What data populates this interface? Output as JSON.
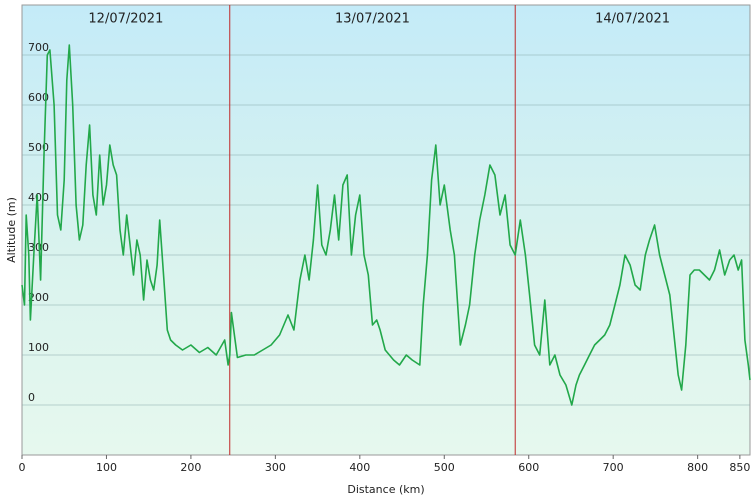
{
  "chart_data": {
    "type": "line",
    "xlabel": "Distance  (km)",
    "ylabel": "Altitude (m)",
    "day_labels": [
      "12/07/2021",
      "13/07/2021",
      "14/07/2021"
    ],
    "day_breaks": [
      246,
      584
    ],
    "break_color": "#c02828",
    "series": [
      {
        "name": "Altitude",
        "color": "#22a84a",
        "x": [
          0,
          3,
          5,
          8,
          10,
          14,
          18,
          22,
          26,
          30,
          33,
          38,
          42,
          46,
          50,
          53,
          56,
          60,
          64,
          68,
          72,
          76,
          80,
          84,
          88,
          92,
          96,
          100,
          104,
          108,
          112,
          116,
          120,
          124,
          128,
          132,
          136,
          140,
          144,
          148,
          152,
          156,
          160,
          163,
          168,
          172,
          176,
          182,
          190,
          200,
          210,
          220,
          230,
          240,
          244,
          246,
          248,
          255,
          265,
          275,
          285,
          295,
          305,
          315,
          322,
          329,
          335,
          340,
          345,
          350,
          355,
          360,
          365,
          370,
          375,
          380,
          385,
          390,
          395,
          400,
          405,
          410,
          415,
          420,
          424,
          430,
          435,
          440,
          447,
          455,
          462,
          471,
          475,
          480,
          485,
          490,
          495,
          500,
          507,
          512,
          519,
          525,
          530,
          536,
          542,
          548,
          554,
          560,
          566,
          572,
          578,
          584,
          590,
          596,
          601,
          607,
          613,
          619,
          625,
          631,
          637,
          644,
          651,
          656,
          660,
          666,
          672,
          678,
          684,
          690,
          696,
          702,
          708,
          714,
          720,
          726,
          732,
          738,
          743,
          749,
          755,
          761,
          767,
          772,
          777,
          781,
          786,
          791,
          796,
          802,
          808,
          814,
          820,
          826,
          832,
          838,
          843,
          848,
          852,
          856,
          860,
          862
        ],
        "values": [
          240,
          200,
          380,
          300,
          170,
          300,
          420,
          250,
          500,
          700,
          710,
          600,
          380,
          350,
          450,
          650,
          720,
          600,
          400,
          330,
          360,
          480,
          560,
          420,
          380,
          500,
          400,
          440,
          520,
          480,
          460,
          350,
          300,
          380,
          320,
          260,
          330,
          300,
          210,
          290,
          250,
          230,
          280,
          370,
          250,
          150,
          130,
          120,
          110,
          120,
          105,
          115,
          100,
          130,
          80,
          100,
          185,
          95,
          100,
          100,
          110,
          120,
          140,
          180,
          150,
          250,
          300,
          250,
          330,
          440,
          320,
          300,
          350,
          420,
          330,
          440,
          460,
          300,
          380,
          420,
          300,
          260,
          160,
          170,
          150,
          110,
          100,
          90,
          80,
          100,
          90,
          80,
          200,
          300,
          450,
          520,
          400,
          440,
          350,
          300,
          120,
          160,
          200,
          300,
          370,
          420,
          480,
          460,
          380,
          420,
          320,
          300,
          370,
          300,
          220,
          120,
          100,
          210,
          80,
          100,
          60,
          40,
          0,
          40,
          60,
          80,
          100,
          120,
          130,
          140,
          160,
          200,
          240,
          300,
          280,
          240,
          230,
          300,
          330,
          360,
          300,
          260,
          220,
          140,
          60,
          30,
          120,
          260,
          270,
          270,
          260,
          250,
          270,
          310,
          260,
          290,
          300,
          270,
          290,
          130,
          80,
          50
        ]
      }
    ],
    "xlim": [
      0,
      862
    ],
    "ylim": [
      -100,
      800
    ],
    "xticks": [
      0,
      100,
      200,
      300,
      400,
      500,
      600,
      700,
      800,
      850
    ],
    "yticks": [
      0,
      100,
      200,
      300,
      400,
      500,
      600,
      700
    ],
    "grid": true
  }
}
